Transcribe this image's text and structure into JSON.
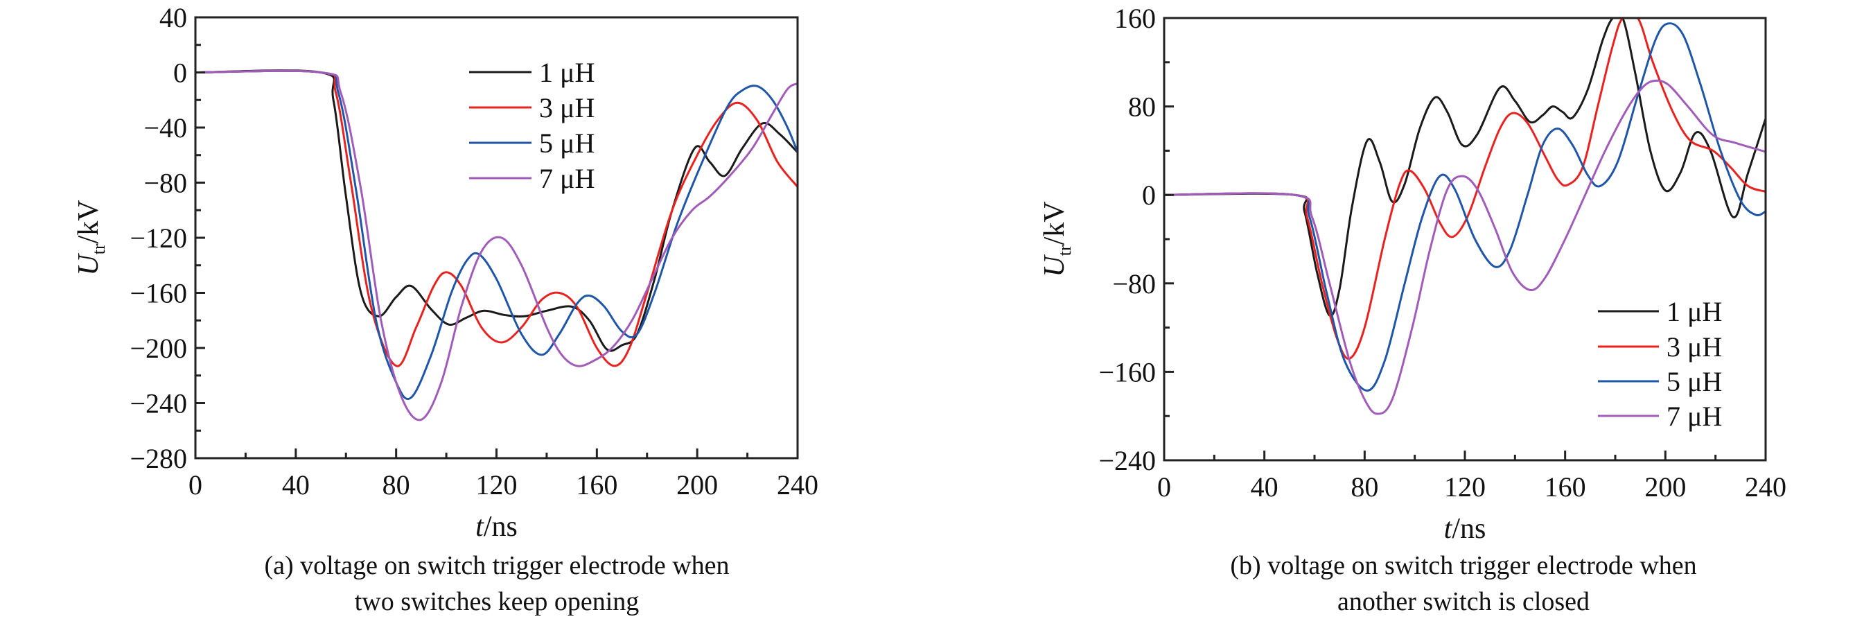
{
  "chart_data": [
    {
      "type": "line",
      "panel": "a",
      "caption": [
        "(a) voltage on switch trigger electrode when",
        "two switches keep opening"
      ],
      "xlabel_italic": "t",
      "xlabel_unit": "/ns",
      "ylabel_italic": "U",
      "ylabel_sub": "tr",
      "ylabel_unit": "/kV",
      "xlim": [
        0,
        240
      ],
      "ylim": [
        -280,
        40
      ],
      "xticks": [
        0,
        40,
        80,
        120,
        160,
        200,
        240
      ],
      "xtick_labels": [
        "0",
        "40",
        "80",
        "120",
        "160",
        "200",
        "240"
      ],
      "yticks": [
        -280,
        -240,
        -200,
        -160,
        -120,
        -80,
        -40,
        0,
        40
      ],
      "ytick_labels": [
        "−280",
        "−240",
        "−200",
        "−160",
        "−120",
        "−80",
        "−40",
        "0",
        "40"
      ],
      "xminor": 20,
      "yminor": 20,
      "legend_position": "top-right",
      "series": [
        {
          "name": "1 μH",
          "color": "#1a1a1a",
          "points": [
            [
              0,
              0
            ],
            [
              50,
              0
            ],
            [
              55,
              -20
            ],
            [
              60,
              -90
            ],
            [
              66,
              -160
            ],
            [
              73,
              -177
            ],
            [
              80,
              -163
            ],
            [
              86,
              -155
            ],
            [
              94,
              -172
            ],
            [
              101,
              -183
            ],
            [
              108,
              -178
            ],
            [
              115,
              -173
            ],
            [
              123,
              -176
            ],
            [
              131,
              -177
            ],
            [
              140,
              -173
            ],
            [
              150,
              -170
            ],
            [
              157,
              -180
            ],
            [
              164,
              -201
            ],
            [
              170,
              -198
            ],
            [
              176,
              -190
            ],
            [
              183,
              -150
            ],
            [
              190,
              -100
            ],
            [
              199,
              -55
            ],
            [
              205,
              -65
            ],
            [
              211,
              -75
            ],
            [
              218,
              -55
            ],
            [
              226,
              -37
            ],
            [
              233,
              -45
            ],
            [
              240,
              -58
            ]
          ]
        },
        {
          "name": "3 μH",
          "color": "#e8231f",
          "points": [
            [
              0,
              0
            ],
            [
              50,
              0
            ],
            [
              56,
              -15
            ],
            [
              62,
              -80
            ],
            [
              70,
              -170
            ],
            [
              80,
              -213
            ],
            [
              88,
              -185
            ],
            [
              95,
              -155
            ],
            [
              100,
              -145
            ],
            [
              106,
              -155
            ],
            [
              114,
              -185
            ],
            [
              122,
              -196
            ],
            [
              130,
              -185
            ],
            [
              138,
              -165
            ],
            [
              145,
              -160
            ],
            [
              152,
              -170
            ],
            [
              160,
              -200
            ],
            [
              167,
              -213
            ],
            [
              173,
              -200
            ],
            [
              180,
              -160
            ],
            [
              190,
              -100
            ],
            [
              200,
              -60
            ],
            [
              208,
              -35
            ],
            [
              216,
              -22
            ],
            [
              224,
              -35
            ],
            [
              232,
              -65
            ],
            [
              240,
              -83
            ]
          ]
        },
        {
          "name": "5 μH",
          "color": "#1f56a8",
          "points": [
            [
              0,
              0
            ],
            [
              50,
              0
            ],
            [
              57,
              -15
            ],
            [
              64,
              -85
            ],
            [
              72,
              -180
            ],
            [
              80,
              -225
            ],
            [
              86,
              -236
            ],
            [
              94,
              -205
            ],
            [
              102,
              -160
            ],
            [
              108,
              -137
            ],
            [
              113,
              -132
            ],
            [
              120,
              -150
            ],
            [
              130,
              -190
            ],
            [
              138,
              -205
            ],
            [
              145,
              -190
            ],
            [
              152,
              -168
            ],
            [
              157,
              -162
            ],
            [
              163,
              -170
            ],
            [
              170,
              -188
            ],
            [
              176,
              -190
            ],
            [
              183,
              -160
            ],
            [
              192,
              -110
            ],
            [
              202,
              -65
            ],
            [
              212,
              -25
            ],
            [
              218,
              -13
            ],
            [
              224,
              -10
            ],
            [
              230,
              -20
            ],
            [
              236,
              -40
            ],
            [
              240,
              -58
            ]
          ]
        },
        {
          "name": "7 μH",
          "color": "#a05cb8",
          "points": [
            [
              0,
              0
            ],
            [
              50,
              0
            ],
            [
              58,
              -15
            ],
            [
              66,
              -85
            ],
            [
              74,
              -180
            ],
            [
              82,
              -235
            ],
            [
              90,
              -252
            ],
            [
              98,
              -225
            ],
            [
              106,
              -170
            ],
            [
              114,
              -130
            ],
            [
              122,
              -120
            ],
            [
              130,
              -140
            ],
            [
              140,
              -185
            ],
            [
              146,
              -205
            ],
            [
              152,
              -213
            ],
            [
              158,
              -210
            ],
            [
              166,
              -200
            ],
            [
              174,
              -180
            ],
            [
              182,
              -150
            ],
            [
              190,
              -120
            ],
            [
              198,
              -100
            ],
            [
              205,
              -90
            ],
            [
              213,
              -75
            ],
            [
              222,
              -55
            ],
            [
              230,
              -30
            ],
            [
              236,
              -12
            ],
            [
              240,
              -8
            ]
          ]
        }
      ],
      "legend": [
        "1 μH",
        "3 μH",
        "5 μH",
        "7 μH"
      ]
    },
    {
      "type": "line",
      "panel": "b",
      "caption": [
        "(b) voltage on switch trigger electrode when",
        "another switch is closed"
      ],
      "xlabel_italic": "t",
      "xlabel_unit": "/ns",
      "ylabel_italic": "U",
      "ylabel_sub": "tr",
      "ylabel_unit": "/kV",
      "xlim": [
        0,
        240
      ],
      "ylim": [
        -240,
        160
      ],
      "xticks": [
        0,
        40,
        80,
        120,
        160,
        200,
        240
      ],
      "xtick_labels": [
        "0",
        "40",
        "80",
        "120",
        "160",
        "200",
        "240"
      ],
      "yticks": [
        -240,
        -160,
        -80,
        0,
        80,
        160
      ],
      "ytick_labels": [
        "−240",
        "−160",
        "−80",
        "0",
        "80",
        "160"
      ],
      "xminor": 20,
      "yminor": 40,
      "legend_position": "bottom-right",
      "series": [
        {
          "name": "1 μH",
          "color": "#1a1a1a",
          "points": [
            [
              0,
              0
            ],
            [
              52,
              0
            ],
            [
              56,
              -15
            ],
            [
              61,
              -70
            ],
            [
              66,
              -109
            ],
            [
              70,
              -85
            ],
            [
              75,
              -10
            ],
            [
              81,
              49
            ],
            [
              86,
              30
            ],
            [
              91,
              -6
            ],
            [
              96,
              10
            ],
            [
              102,
              60
            ],
            [
              108,
              88
            ],
            [
              113,
              75
            ],
            [
              119,
              45
            ],
            [
              125,
              55
            ],
            [
              134,
              97
            ],
            [
              140,
              85
            ],
            [
              146,
              66
            ],
            [
              151,
              72
            ],
            [
              155,
              80
            ],
            [
              159,
              75
            ],
            [
              163,
              70
            ],
            [
              169,
              95
            ],
            [
              175,
              140
            ],
            [
              179,
              160
            ],
            [
              183,
              160
            ],
            [
              188,
              110
            ],
            [
              194,
              40
            ],
            [
              200,
              4
            ],
            [
              206,
              20
            ],
            [
              212,
              56
            ],
            [
              218,
              40
            ],
            [
              227,
              -20
            ],
            [
              233,
              20
            ],
            [
              240,
              69
            ]
          ]
        },
        {
          "name": "3 μH",
          "color": "#e8231f",
          "points": [
            [
              0,
              0
            ],
            [
              52,
              0
            ],
            [
              57,
              -20
            ],
            [
              63,
              -80
            ],
            [
              69,
              -130
            ],
            [
              74,
              -148
            ],
            [
              80,
              -120
            ],
            [
              88,
              -40
            ],
            [
              94,
              10
            ],
            [
              98,
              22
            ],
            [
              104,
              5
            ],
            [
              110,
              -25
            ],
            [
              115,
              -38
            ],
            [
              121,
              -20
            ],
            [
              128,
              25
            ],
            [
              134,
              60
            ],
            [
              139,
              74
            ],
            [
              145,
              65
            ],
            [
              152,
              35
            ],
            [
              157,
              14
            ],
            [
              161,
              9
            ],
            [
              167,
              25
            ],
            [
              173,
              80
            ],
            [
              179,
              135
            ],
            [
              183,
              160
            ],
            [
              189,
              160
            ],
            [
              195,
              120
            ],
            [
              203,
              75
            ],
            [
              210,
              49
            ],
            [
              219,
              40
            ],
            [
              226,
              25
            ],
            [
              233,
              8
            ],
            [
              240,
              3
            ]
          ]
        },
        {
          "name": "5 μH",
          "color": "#1f56a8",
          "points": [
            [
              0,
              0
            ],
            [
              52,
              0
            ],
            [
              58,
              -20
            ],
            [
              65,
              -90
            ],
            [
              72,
              -150
            ],
            [
              81,
              -177
            ],
            [
              88,
              -150
            ],
            [
              96,
              -80
            ],
            [
              103,
              -20
            ],
            [
              110,
              17
            ],
            [
              116,
              5
            ],
            [
              124,
              -40
            ],
            [
              132,
              -65
            ],
            [
              138,
              -50
            ],
            [
              145,
              0
            ],
            [
              151,
              45
            ],
            [
              157,
              60
            ],
            [
              163,
              45
            ],
            [
              169,
              18
            ],
            [
              174,
              8
            ],
            [
              181,
              30
            ],
            [
              189,
              90
            ],
            [
              196,
              140
            ],
            [
              201,
              155
            ],
            [
              207,
              145
            ],
            [
              214,
              100
            ],
            [
              222,
              40
            ],
            [
              230,
              -5
            ],
            [
              236,
              -18
            ],
            [
              240,
              -15
            ]
          ]
        },
        {
          "name": "7 μH",
          "color": "#a05cb8",
          "points": [
            [
              0,
              0
            ],
            [
              52,
              0
            ],
            [
              59,
              -20
            ],
            [
              66,
              -80
            ],
            [
              74,
              -150
            ],
            [
              80,
              -185
            ],
            [
              85,
              -198
            ],
            [
              91,
              -185
            ],
            [
              99,
              -120
            ],
            [
              106,
              -50
            ],
            [
              113,
              5
            ],
            [
              119,
              17
            ],
            [
              125,
              5
            ],
            [
              132,
              -30
            ],
            [
              139,
              -70
            ],
            [
              146,
              -86
            ],
            [
              152,
              -75
            ],
            [
              160,
              -40
            ],
            [
              168,
              0
            ],
            [
              176,
              40
            ],
            [
              184,
              75
            ],
            [
              190,
              95
            ],
            [
              195,
              103
            ],
            [
              201,
              100
            ],
            [
              209,
              80
            ],
            [
              219,
              54
            ],
            [
              228,
              47
            ],
            [
              240,
              39
            ]
          ]
        }
      ],
      "legend": [
        "1 μH",
        "3 μH",
        "5 μH",
        "7 μH"
      ]
    }
  ]
}
